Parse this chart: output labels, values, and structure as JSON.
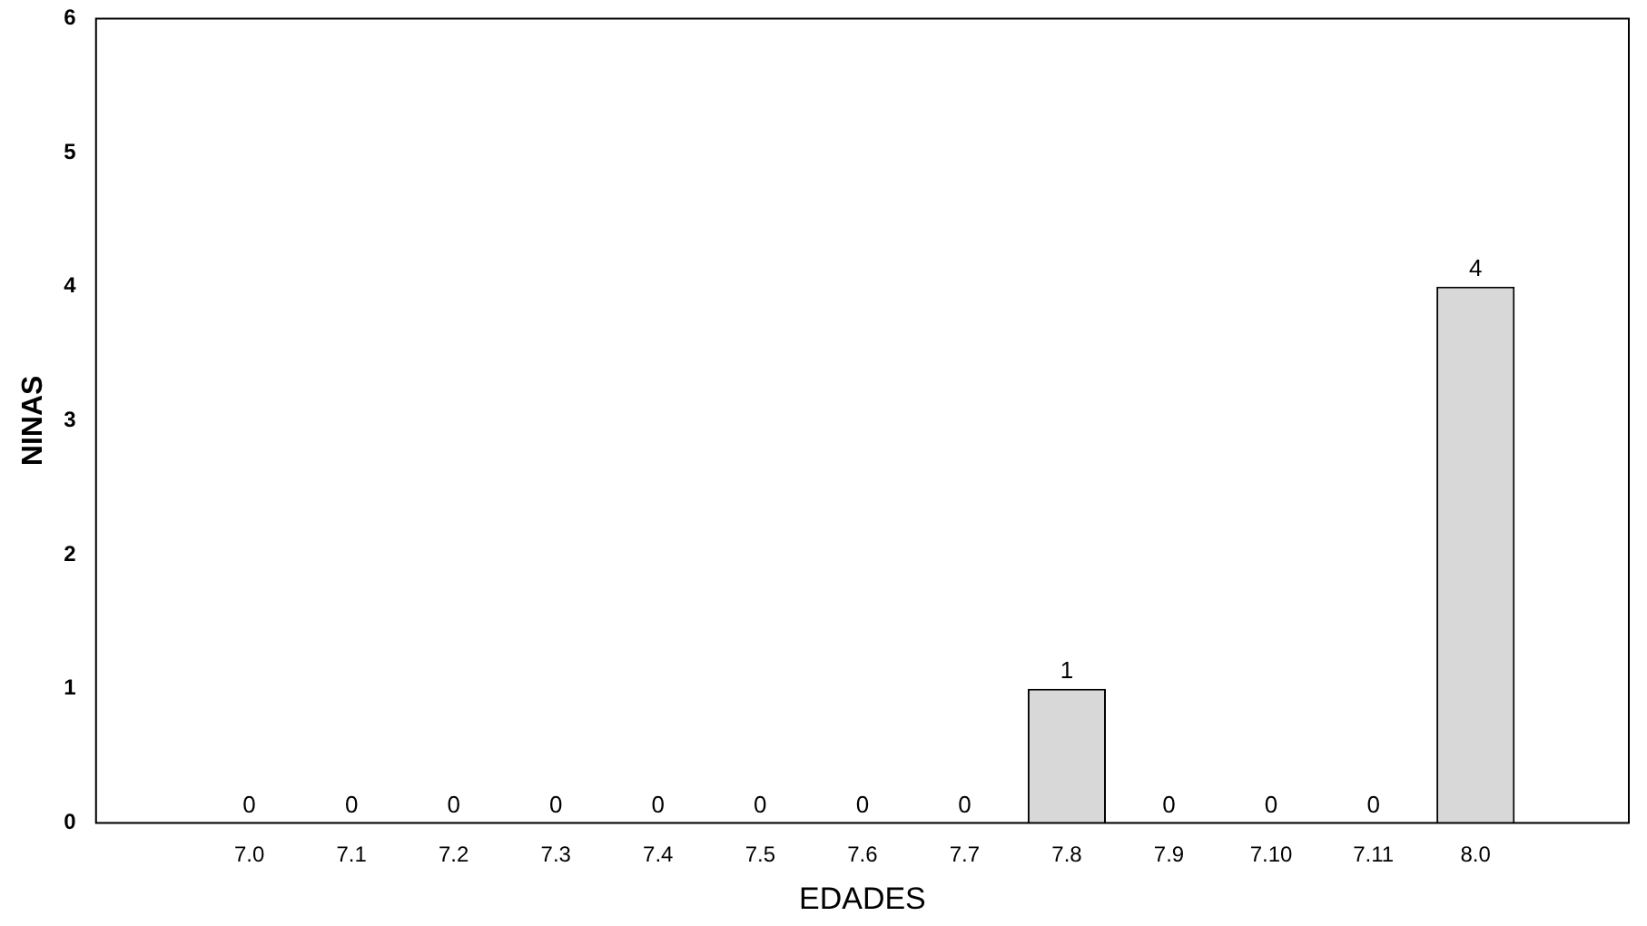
{
  "chart_data": {
    "type": "bar",
    "xlabel": "EDADES",
    "ylabel": "NINAS",
    "categories": [
      null,
      "7.0",
      "7.1",
      "7.2",
      "7.3",
      "7.4",
      "7.5",
      "7.6",
      "7.7",
      "7.8",
      "7.9",
      "7.10",
      "7.11",
      "8.0",
      null
    ],
    "values": [
      null,
      0,
      0,
      0,
      0,
      0,
      0,
      0,
      0,
      1,
      0,
      0,
      0,
      4,
      null
    ],
    "color": "#d8d8d8",
    "ylim": [
      0,
      6
    ],
    "yticks": [
      0,
      1,
      2,
      3,
      4,
      5,
      6
    ],
    "grid": false,
    "data_labels": true,
    "legend": false
  }
}
